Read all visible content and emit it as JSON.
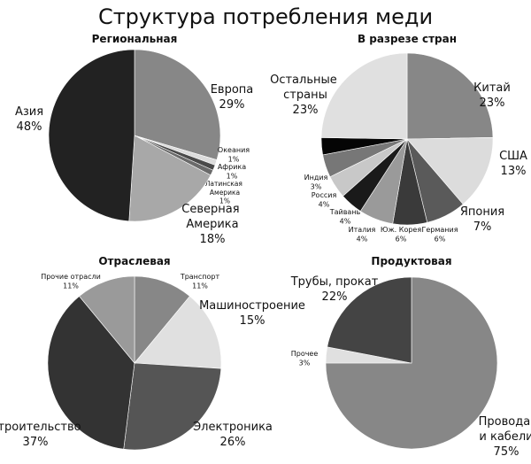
{
  "title": "Структура потребления меди",
  "chart_data": [
    {
      "type": "pie",
      "title": "Региональная",
      "categories": [
        "Европа",
        "Океания",
        "Африка",
        "Латинская Америка",
        "Северная Америка",
        "Азия"
      ],
      "values": [
        29,
        1,
        1,
        1,
        18,
        48
      ],
      "value_labels": [
        "29%",
        "1%",
        "1%",
        "1%",
        "18%",
        "48%"
      ],
      "colors": [
        "#878787",
        "#dcdcdc",
        "#4a4a4a",
        "#6a6a6a",
        "#a8a8a8",
        "#222222"
      ]
    },
    {
      "type": "pie",
      "title": "В разрезе стран",
      "categories": [
        "Китай",
        "США",
        "Япония",
        "Германия",
        "Юж. Корея",
        "Италия",
        "Тайвань",
        "Россия",
        "Индия",
        "Остальные страны"
      ],
      "values": [
        23,
        13,
        7,
        6,
        6,
        4,
        4,
        4,
        3,
        23
      ],
      "value_labels": [
        "23%",
        "13%",
        "7%",
        "6%",
        "6%",
        "4%",
        "4%",
        "4%",
        "3%",
        "23%"
      ],
      "colors": [
        "#878787",
        "#dcdcdc",
        "#5a5a5a",
        "#3a3a3a",
        "#9a9a9a",
        "#1a1a1a",
        "#c8c8c8",
        "#777777",
        "#050505",
        "#e0e0e0"
      ]
    },
    {
      "type": "pie",
      "title": "Отраслевая",
      "categories": [
        "Транспорт",
        "Машиностроение",
        "Электроника",
        "Строительство",
        "Прочие отрасли"
      ],
      "values": [
        11,
        15,
        26,
        37,
        11
      ],
      "value_labels": [
        "11%",
        "15%",
        "26%",
        "37%",
        "11%"
      ],
      "colors": [
        "#878787",
        "#e0e0e0",
        "#555555",
        "#333333",
        "#9a9a9a"
      ]
    },
    {
      "type": "pie",
      "title": "Продуктовая",
      "categories": [
        "Провода и кабели",
        "Прочее",
        "Трубы, прокат"
      ],
      "values": [
        75,
        3,
        22
      ],
      "value_labels": [
        "75%",
        "3%",
        "22%"
      ],
      "colors": [
        "#878787",
        "#e0e0e0",
        "#444444"
      ]
    }
  ]
}
